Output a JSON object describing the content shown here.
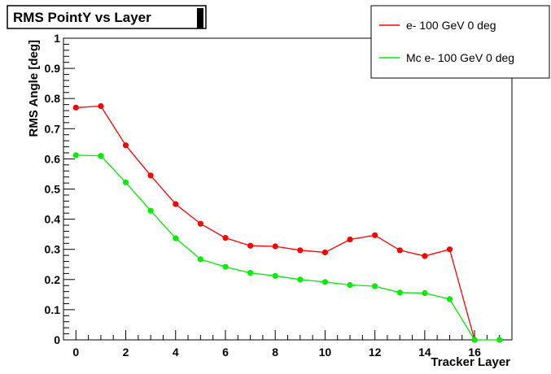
{
  "chart_data": {
    "type": "line",
    "title": "RMS PointY vs Layer",
    "xlabel": "Tracker Layer",
    "ylabel": "RMS Angle [deg]",
    "xlim": [
      -0.5,
      17.5
    ],
    "ylim": [
      0,
      1
    ],
    "xticks": [
      "0",
      "2",
      "4",
      "6",
      "8",
      "10",
      "12",
      "14",
      "16"
    ],
    "yticks": [
      "0",
      "0.1",
      "0.2",
      "0.3",
      "0.4",
      "0.5",
      "0.6",
      "0.7",
      "0.8",
      "0.9",
      "1"
    ],
    "x": [
      0,
      1,
      2,
      3,
      4,
      5,
      6,
      7,
      8,
      9,
      10,
      11,
      12,
      13,
      14,
      15,
      16,
      17
    ],
    "series": [
      {
        "name": "e- 100 GeV 0 deg",
        "color": "#ff0000",
        "values": [
          0.77,
          0.775,
          0.645,
          0.545,
          0.45,
          0.385,
          0.338,
          0.312,
          0.31,
          0.297,
          0.29,
          0.333,
          0.347,
          0.297,
          0.278,
          0.3,
          0.0,
          null
        ]
      },
      {
        "name": "Mc e- 100 GeV 0 deg",
        "color": "#00ee00",
        "values": [
          0.612,
          0.61,
          0.522,
          0.428,
          0.337,
          0.267,
          0.242,
          0.222,
          0.212,
          0.2,
          0.192,
          0.182,
          0.178,
          0.157,
          0.155,
          0.135,
          0.0,
          0.0
        ]
      }
    ],
    "grid": false,
    "legend_position": "top-right"
  }
}
